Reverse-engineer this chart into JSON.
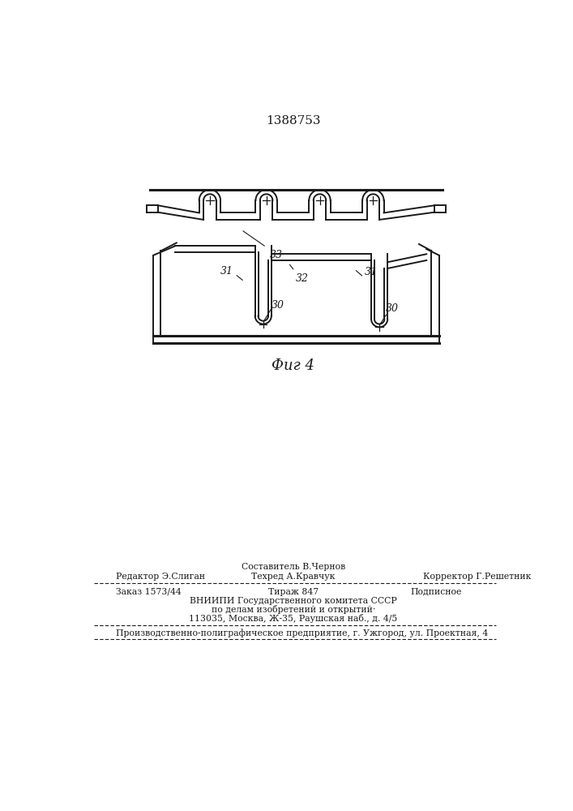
{
  "patent_number": "1388753",
  "fig_label": "Фиг 4",
  "background_color": "#ffffff",
  "line_color": "#1a1a1a",
  "text": {
    "editor": "Редактор Э.Слиган",
    "composer": "Составитель В.Чернов",
    "techred": "Техред А.Кравчук",
    "corrector": "Корректор Г.Решетник",
    "order": "Заказ 1573/44",
    "tirazh": "Тираж 847",
    "podpisnoe": "Подписное",
    "vniipb_line1": "ВНИИПИ Государственного комитета СССР",
    "vniipb_line2": "по делам изобретений и открытий·",
    "vniipb_line3": "113035, Москва, Ж-35, Раушская наб., д. 4/5",
    "production": "Производственно-полиграфическое предприятие, г. Ужгород, ул. Проектная, 4"
  }
}
